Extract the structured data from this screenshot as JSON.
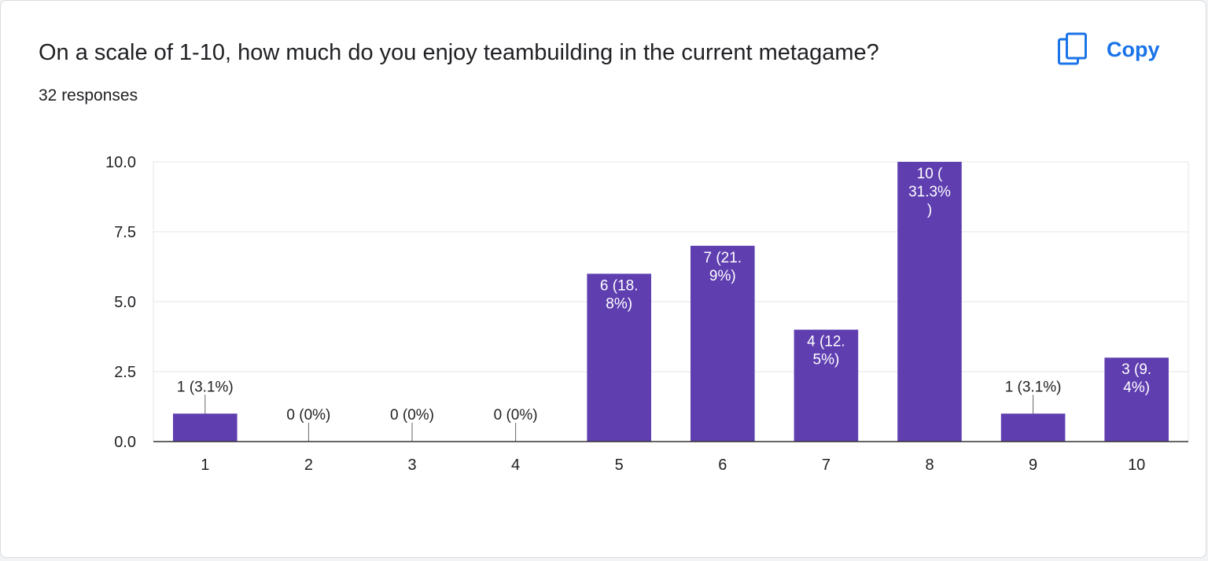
{
  "question": {
    "title": "On a scale of 1-10, how much do you enjoy teambuilding in the current metagame?",
    "responses": "32 responses"
  },
  "copy_button": {
    "label": "Copy",
    "icon": "copy-icon"
  },
  "colors": {
    "bar": "#5f3eb0",
    "accent": "#1a73e8",
    "grid": "#e6e6e6",
    "axis": "#333333"
  },
  "chart_data": {
    "type": "bar",
    "title": "On a scale of 1-10, how much do you enjoy teambuilding in the current metagame?",
    "xlabel": "",
    "ylabel": "",
    "categories": [
      "1",
      "2",
      "3",
      "4",
      "5",
      "6",
      "7",
      "8",
      "9",
      "10"
    ],
    "values": [
      1,
      0,
      0,
      0,
      6,
      7,
      4,
      10,
      1,
      3
    ],
    "data_labels": [
      [
        "1 (3.1%)"
      ],
      [
        "0 (0%)"
      ],
      [
        "0 (0%)"
      ],
      [
        "0 (0%)"
      ],
      [
        "6 (18.",
        "8%)"
      ],
      [
        "7 (21.",
        "9%)"
      ],
      [
        "4 (12.",
        "5%)"
      ],
      [
        "10 (",
        "31.3%",
        ")"
      ],
      [
        "1 (3.1%)"
      ],
      [
        "3 (9.",
        "4%)"
      ]
    ],
    "ylim": [
      0,
      10
    ],
    "yticks": [
      "0.0",
      "2.5",
      "5.0",
      "7.5",
      "10.0"
    ],
    "grid": true,
    "legend": "none"
  }
}
